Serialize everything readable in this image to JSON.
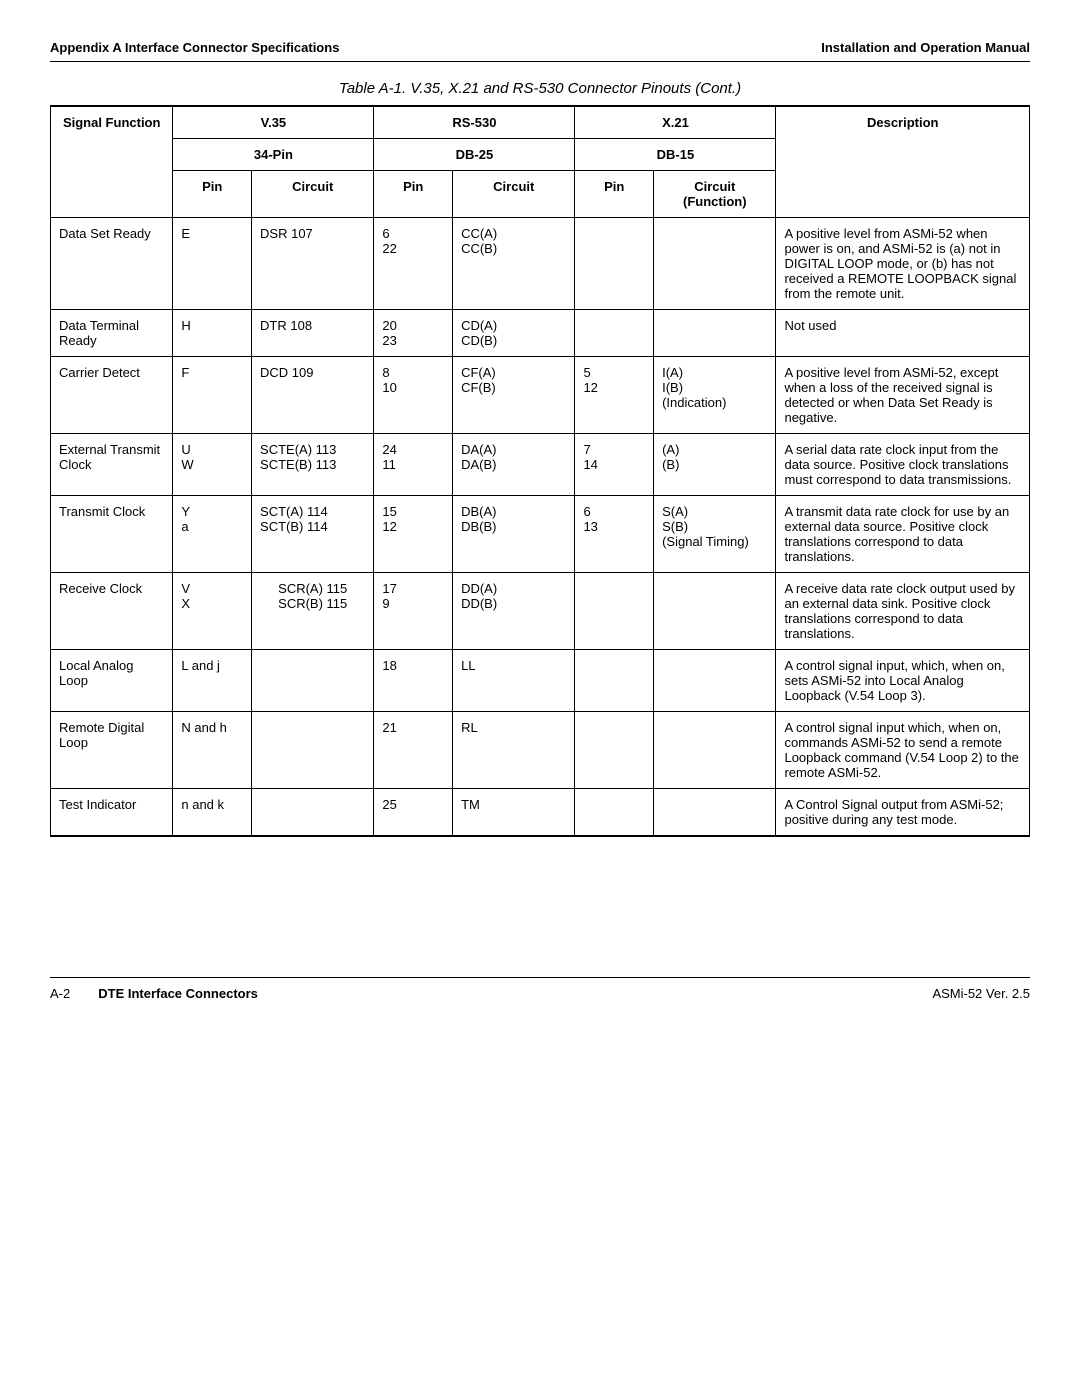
{
  "header": {
    "left": "Appendix A  Interface Connector Specifications",
    "right": "Installation and Operation Manual"
  },
  "table_title": "Table A-1.  V.35, X.21 and RS-530 Connector Pinouts (Cont.)",
  "columns": {
    "signal": "Signal Function",
    "v35": "V.35",
    "v35_sub": "34-Pin",
    "rs530": "RS-530",
    "rs530_sub": "DB-25",
    "x21": "X.21",
    "x21_sub": "DB-15",
    "desc": "Description",
    "pin": "Pin",
    "circuit": "Circuit",
    "circuit_fn": "Circuit (Function)"
  },
  "rows": [
    {
      "signal": "Data Set Ready",
      "v35_pin": "E",
      "v35_circ": "DSR 107",
      "rs_pin": "6\n22",
      "rs_circ": "CC(A)\nCC(B)",
      "x_pin": "",
      "x_circ": "",
      "desc": "A positive level from ASMi-52 when power is on, and ASMi-52 is (a) not in DIGITAL LOOP mode, or (b) has not received a REMOTE LOOPBACK signal from the remote unit."
    },
    {
      "signal": "Data Terminal Ready",
      "v35_pin": "H",
      "v35_circ": "DTR 108",
      "rs_pin": "20\n23",
      "rs_circ": "CD(A)\nCD(B)",
      "x_pin": "",
      "x_circ": "",
      "desc": "Not used"
    },
    {
      "signal": "Carrier Detect",
      "v35_pin": "F",
      "v35_circ": "DCD 109",
      "rs_pin": "8\n10",
      "rs_circ": "CF(A)\nCF(B)",
      "x_pin": "5\n12",
      "x_circ": "I(A)\nI(B)\n(Indication)",
      "desc": "A positive level from ASMi-52, except when a loss of the received signal is detected or when Data Set Ready is negative."
    },
    {
      "signal": "External Transmit Clock",
      "v35_pin": "U\nW",
      "v35_circ": "SCTE(A) 113\nSCTE(B) 113",
      "rs_pin": "24\n11",
      "rs_circ": "DA(A)\nDA(B)",
      "x_pin": "7\n14",
      "x_circ": "(A)\n(B)",
      "desc": "A serial data rate clock input from the data source. Positive clock translations must correspond to data transmissions."
    },
    {
      "signal": "Transmit Clock",
      "v35_pin": "Y\na",
      "v35_circ": "SCT(A) 114\nSCT(B) 114",
      "rs_pin": "15\n12",
      "rs_circ": "DB(A)\nDB(B)",
      "x_pin": "6\n13",
      "x_circ": "S(A)\nS(B)\n(Signal Timing)",
      "desc": "A transmit data rate clock for use by an external data source. Positive clock translations correspond to data translations."
    },
    {
      "signal": "Receive Clock",
      "v35_pin": "V\nX",
      "v35_circ": "SCR(A) 115\nSCR(B) 115",
      "rs_pin": "17\n9",
      "rs_circ": "DD(A)\nDD(B)",
      "x_pin": "",
      "x_circ": "",
      "desc": "A receive data rate clock output used by an external data sink. Positive clock translations correspond to data translations."
    },
    {
      "signal": "Local Analog Loop",
      "v35_pin": "L and j",
      "v35_circ": "",
      "rs_pin": "18",
      "rs_circ": "LL",
      "x_pin": "",
      "x_circ": "",
      "desc": "A control signal input, which, when on, sets ASMi-52 into Local Analog Loopback (V.54 Loop 3)."
    },
    {
      "signal": "Remote Digital Loop",
      "v35_pin": "N and h",
      "v35_circ": "",
      "rs_pin": "21",
      "rs_circ": "RL",
      "x_pin": "",
      "x_circ": "",
      "desc": "A control signal input which, when on, commands ASMi-52 to send a remote Loopback command (V.54 Loop 2) to the remote ASMi-52."
    },
    {
      "signal": "Test Indicator",
      "v35_pin": "n and k",
      "v35_circ": "",
      "rs_pin": "25",
      "rs_circ": "TM",
      "x_pin": "",
      "x_circ": "",
      "desc": "A Control Signal output from ASMi-52; positive during any test mode."
    }
  ],
  "footer": {
    "page": "A-2",
    "section": "DTE Interface Connectors",
    "right": "ASMi-52 Ver. 2.5"
  }
}
